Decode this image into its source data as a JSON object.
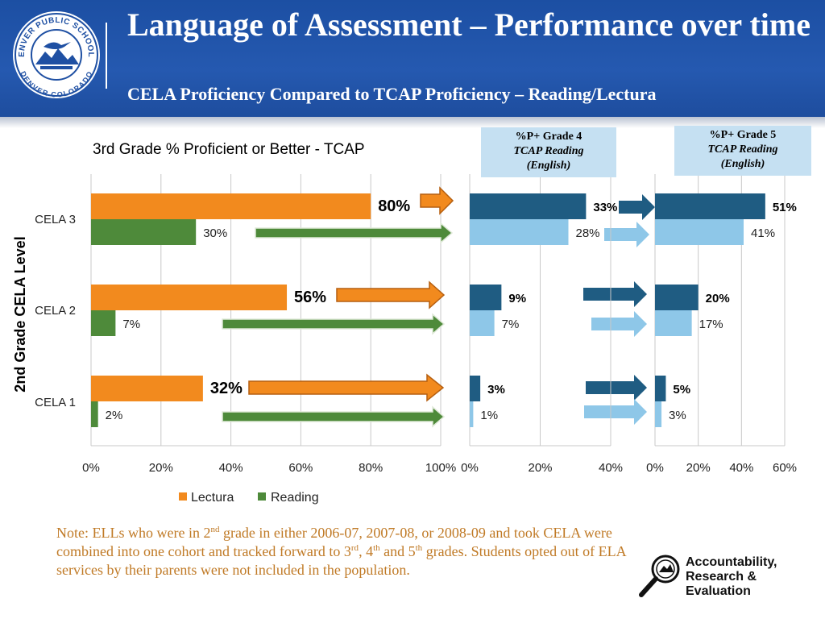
{
  "header": {
    "title": "Language of Assessment – Performance over time",
    "subtitle": "CELA Proficiency Compared to TCAP Proficiency – Reading/Lectura",
    "seal_text_top": "DENVER PUBLIC SCHOOLS",
    "seal_text_bottom": "DENVER COLORADO"
  },
  "colors": {
    "header": "#1f50a3",
    "lectura": "#f28a1e",
    "reading": "#4e8a3a",
    "grade_dark": "#1f5c82",
    "grade_light": "#8ec7e8",
    "callout_bg": "#c5e0f2",
    "note_text": "#c07a26"
  },
  "callouts": {
    "grade4": {
      "line1": "%P+ Grade 4",
      "line2": "TCAP Reading",
      "line3": "(English)"
    },
    "grade5": {
      "line1": "%P+ Grade 5",
      "line2": "TCAP Reading",
      "line3": "(English)"
    }
  },
  "chart_data": [
    {
      "type": "bar",
      "orientation": "horizontal",
      "title": "3rd Grade % Proficient or Better - TCAP",
      "ylabel": "2nd Grade CELA Level",
      "categories": [
        "CELA 3",
        "CELA 2",
        "CELA 1"
      ],
      "series": [
        {
          "name": "Lectura",
          "values": [
            80,
            56,
            32
          ],
          "labels": [
            "80%",
            "56%",
            "32%"
          ]
        },
        {
          "name": "Reading",
          "values": [
            30,
            7,
            2
          ],
          "labels": [
            "30%",
            "7%",
            "2%"
          ]
        }
      ],
      "xlim": [
        0,
        100
      ],
      "xticks": [
        "0%",
        "20%",
        "40%",
        "60%",
        "80%",
        "100%"
      ],
      "legend": {
        "placement": "bottom",
        "entries": [
          "Lectura",
          "Reading"
        ]
      },
      "grid": true
    },
    {
      "type": "bar",
      "orientation": "horizontal",
      "categories": [
        "CELA 3",
        "CELA 2",
        "CELA 1"
      ],
      "series": [
        {
          "values": [
            33,
            9,
            3
          ],
          "labels": [
            "33%",
            "9%",
            "3%"
          ]
        },
        {
          "values": [
            28,
            7,
            1
          ],
          "labels": [
            "28%",
            "7%",
            "1%"
          ]
        }
      ],
      "xlim": [
        0,
        40
      ],
      "xticks": [
        "0%",
        "20%",
        "40%"
      ],
      "grid": true
    },
    {
      "type": "bar",
      "orientation": "horizontal",
      "categories": [
        "CELA 3",
        "CELA 2",
        "CELA 1"
      ],
      "series": [
        {
          "values": [
            51,
            20,
            5
          ],
          "labels": [
            "51%",
            "20%",
            "5%"
          ]
        },
        {
          "values": [
            41,
            17,
            3
          ],
          "labels": [
            "41%",
            "17%",
            "3%"
          ]
        }
      ],
      "xlim": [
        0,
        60
      ],
      "xticks": [
        "0%",
        "20%",
        "40%",
        "60%"
      ],
      "grid": true
    }
  ],
  "note": {
    "p1": "Note: ELLs who were in 2",
    "s1": "nd",
    "p2": " grade in either 2006-07, 2007-08, or 2008-09 and took CELA were combined into one cohort and tracked forward to 3",
    "s2": "rd",
    "p3": ", 4",
    "s3": "th",
    "p4": " and 5",
    "s4": "th",
    "p5": " grades. Students opted out of ELA services  by their parents were not included in the population."
  },
  "are_logo": {
    "line1": "Accountability,",
    "line2": "Research &",
    "line3": "Evaluation"
  }
}
